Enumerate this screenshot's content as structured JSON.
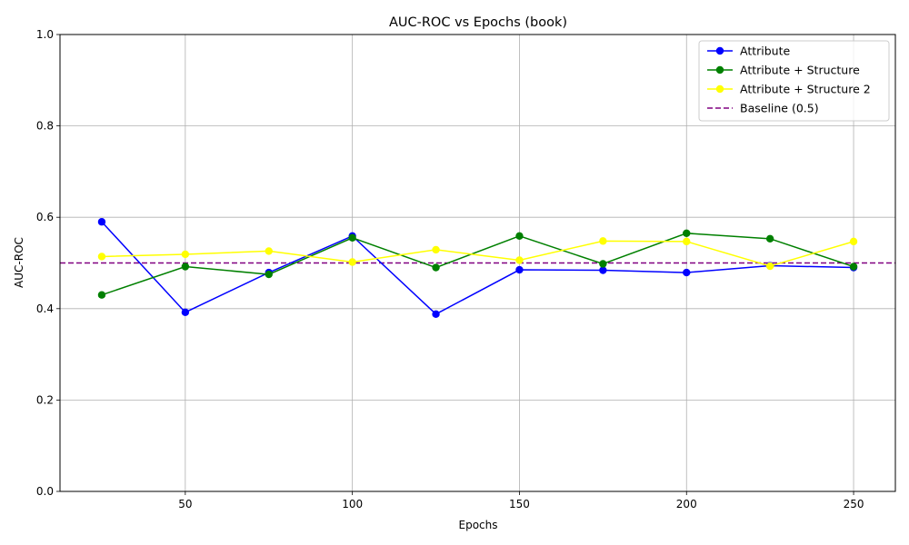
{
  "chart_data": {
    "type": "line",
    "title": "AUC-ROC vs Epochs (book)",
    "xlabel": "Epochs",
    "ylabel": "AUC-ROC",
    "xlim": [
      12.5,
      262.5
    ],
    "ylim": [
      0,
      1
    ],
    "xticks": [
      50,
      100,
      150,
      200,
      250
    ],
    "yticks": [
      0.0,
      0.2,
      0.4,
      0.6,
      0.8,
      1.0
    ],
    "ytick_labels": [
      "0.0",
      "0.2",
      "0.4",
      "0.6",
      "0.8",
      "1.0"
    ],
    "grid": true,
    "legend_position": "top-right",
    "x": [
      25,
      50,
      75,
      100,
      125,
      150,
      175,
      200,
      225,
      250
    ],
    "series": [
      {
        "name": "Attribute",
        "color": "#0000ff",
        "marker": "circle",
        "values": [
          0.59,
          0.392,
          0.479,
          0.559,
          0.388,
          0.485,
          0.484,
          0.479,
          0.494,
          0.49
        ]
      },
      {
        "name": "Attribute + Structure",
        "color": "#008000",
        "marker": "circle",
        "values": [
          0.43,
          0.492,
          0.475,
          0.555,
          0.49,
          0.559,
          0.498,
          0.565,
          0.553,
          0.492
        ]
      },
      {
        "name": "Attribute + Structure 2",
        "color": "#ffff00",
        "marker": "circle",
        "values": [
          0.514,
          0.519,
          0.526,
          0.502,
          0.529,
          0.506,
          0.548,
          0.547,
          0.493,
          0.547
        ]
      }
    ],
    "baseline": {
      "name": "Baseline (0.5)",
      "value": 0.5,
      "color": "#800080",
      "style": "dashed"
    }
  }
}
